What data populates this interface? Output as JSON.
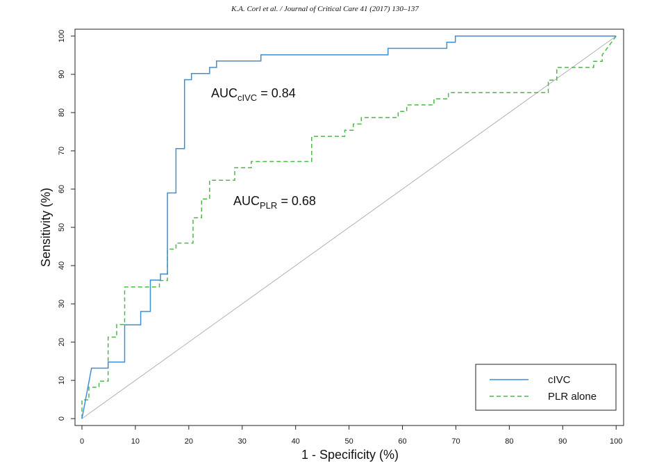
{
  "header": "K.A. Corl et al. / Journal of Critical Care 41 (2017) 130–137",
  "chart_data": {
    "type": "line",
    "step": true,
    "xlabel": "1 - Specificity (%)",
    "ylabel": "Sensitivity (%)",
    "xlim": [
      -1.3,
      101.4
    ],
    "ylim": [
      -1.8,
      101.8
    ],
    "xticks": [
      0,
      10,
      20,
      30,
      40,
      50,
      60,
      70,
      80,
      90,
      100
    ],
    "yticks": [
      0,
      10,
      20,
      30,
      40,
      50,
      60,
      70,
      80,
      90,
      100
    ],
    "legend": "lower right",
    "reference_line": {
      "x": [
        0,
        100
      ],
      "values": [
        0,
        100
      ],
      "color": "#b0b0b0"
    },
    "series": [
      {
        "name": "cIVC",
        "color": "#3a8fd6",
        "dash": "solid",
        "x": [
          0,
          1.8,
          4.9,
          4.9,
          8,
          8,
          11,
          11,
          12.8,
          12.8,
          14.7,
          14.7,
          16,
          16,
          17.6,
          17.6,
          19.2,
          19.2,
          20.5,
          20.5,
          23.9,
          23.9,
          25.2,
          25.2,
          33.5,
          33.5,
          57.3,
          57.3,
          68.3,
          68.3,
          69.9,
          69.9,
          100
        ],
        "values": [
          0,
          13.2,
          13.2,
          14.8,
          14.8,
          24.5,
          24.5,
          28,
          28,
          36.2,
          36.2,
          37.8,
          37.8,
          59,
          59,
          70.6,
          70.6,
          88.6,
          88.6,
          90.2,
          90.2,
          91.8,
          91.8,
          93.5,
          93.5,
          95.1,
          95.1,
          96.8,
          96.8,
          98.4,
          98.4,
          100,
          100
        ]
      },
      {
        "name": "PLR alone",
        "color": "#4cb848",
        "dash": "dashed",
        "x": [
          0,
          0,
          1.3,
          1.3,
          3.2,
          3.2,
          4.9,
          4.9,
          6.5,
          6.5,
          8,
          8,
          14.5,
          14.5,
          16,
          16,
          17.6,
          17.6,
          20.8,
          20.8,
          22.4,
          22.4,
          23.9,
          23.9,
          28.6,
          28.6,
          31.7,
          31.7,
          43,
          43,
          49.2,
          49.2,
          50.8,
          50.8,
          52.3,
          52.3,
          59.2,
          59.2,
          60.8,
          60.8,
          65.9,
          65.9,
          68.6,
          68.6,
          87.3,
          87.3,
          88.9,
          88.9,
          95.8,
          95.8,
          97.4,
          97.4,
          100
        ],
        "values": [
          0,
          4.9,
          4.9,
          8.2,
          8.2,
          9.8,
          9.8,
          21.3,
          21.3,
          24.6,
          24.6,
          34.4,
          34.4,
          36.1,
          36.1,
          44.3,
          44.3,
          45.9,
          45.9,
          52.5,
          52.5,
          57.4,
          57.4,
          62.3,
          62.3,
          65.6,
          65.6,
          67.2,
          67.2,
          73.8,
          73.8,
          75.4,
          75.4,
          77,
          77,
          78.7,
          78.7,
          80.3,
          80.3,
          82,
          82,
          83.6,
          83.6,
          85.2,
          85.2,
          88.5,
          88.5,
          91.8,
          91.8,
          93.4,
          93.4,
          95.1,
          100
        ]
      }
    ],
    "annotations": [
      {
        "text": "AUC",
        "subscript": "cIVC",
        "suffix": " = 0.84"
      },
      {
        "text": "AUC",
        "subscript": "PLR",
        "suffix": " = 0.68"
      }
    ]
  }
}
